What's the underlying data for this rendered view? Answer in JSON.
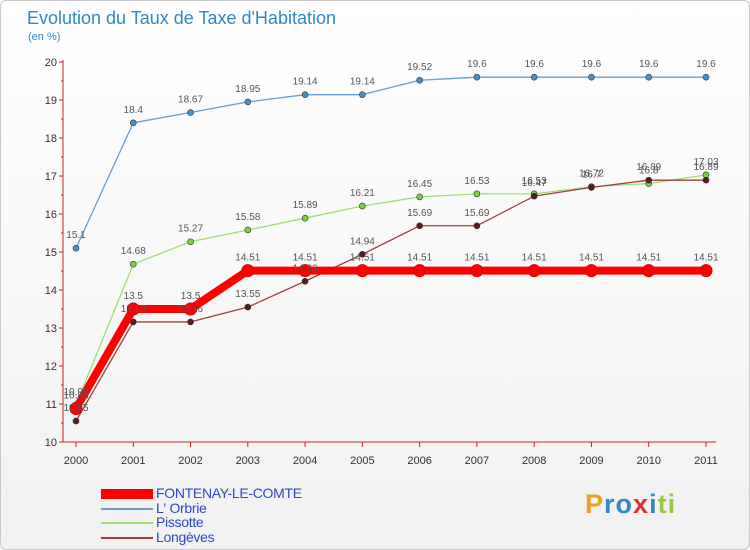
{
  "title": "Evolution du Taux de Taxe d'Habitation",
  "unit_label": "(en %)",
  "logo_text": "Proxiti",
  "logo_colors": [
    "#f0a020",
    "#2e89c6",
    "#2e89c6",
    "#e03030",
    "#2e89c6",
    "#9cc83c",
    "#9cc83c"
  ],
  "chart_data": {
    "type": "line",
    "title": "Evolution du Taux de Taxe d'Habitation",
    "ylabel": "(en %)",
    "xlabel": "",
    "x": [
      "2000",
      "2001",
      "2002",
      "2003",
      "2004",
      "2005",
      "2006",
      "2007",
      "2008",
      "2009",
      "2010",
      "2011"
    ],
    "ylim": [
      10,
      20
    ],
    "yticks": [
      10,
      11,
      12,
      13,
      14,
      15,
      16,
      17,
      18,
      19,
      20
    ],
    "grid": false,
    "legend_position": "bottom-left",
    "series": [
      {
        "name": "FONTENAY-LE-COMTE",
        "color": "#ff0000",
        "point_color": "#ff0000",
        "values": [
          10.88,
          13.5,
          13.5,
          14.51,
          14.51,
          14.51,
          14.51,
          14.51,
          14.51,
          14.51,
          14.51,
          14.51
        ],
        "labels": [
          "10.88",
          "13.5",
          "13.5",
          "14.51",
          "14.51",
          "14.51",
          "14.51",
          "14.51",
          "14.51",
          "14.51",
          "14.51",
          "14.51"
        ]
      },
      {
        "name": "L' Orbrie",
        "color": "#6a9dd0",
        "point_color": "#4a90c8",
        "values": [
          15.1,
          18.4,
          18.67,
          18.95,
          19.14,
          19.14,
          19.52,
          19.6,
          19.6,
          19.6,
          19.6,
          19.6
        ],
        "labels": [
          "15.1",
          "18.4",
          "18.67",
          "18.95",
          "19.14",
          "19.14",
          "19.52",
          "19.6",
          "19.6",
          "19.6",
          "19.6",
          "19.6"
        ]
      },
      {
        "name": "Pissotte",
        "color": "#9ee070",
        "point_color": "#7ccf3c",
        "values": [
          10.98,
          14.68,
          15.27,
          15.58,
          15.89,
          16.21,
          16.45,
          16.53,
          16.53,
          16.72,
          16.8,
          17.03
        ],
        "labels": [
          "10.98",
          "14.68",
          "15.27",
          "15.58",
          "15.89",
          "16.21",
          "16.45",
          "16.53",
          "16.53",
          "16.72",
          "16.8",
          "17.03"
        ]
      },
      {
        "name": "Longèves",
        "color": "#a04040",
        "point_color": "#5a1a1a",
        "values": [
          10.55,
          13.16,
          13.16,
          13.55,
          14.23,
          14.94,
          15.69,
          15.69,
          16.47,
          16.7,
          16.89,
          16.89
        ],
        "labels": [
          "10.55",
          "13.16",
          "13.16",
          "13.55",
          "14.23",
          "14.94",
          "15.69",
          "15.69",
          "16.47",
          "16.7",
          "16.89",
          "16.89"
        ]
      }
    ]
  }
}
